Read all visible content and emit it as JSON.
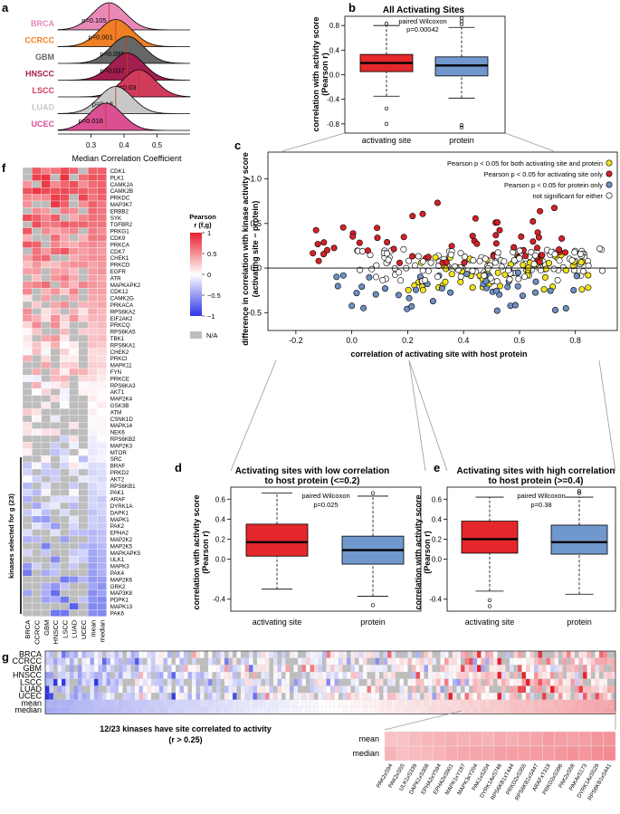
{
  "colors": {
    "activating": "#e4272b",
    "protein": "#7098cc",
    "both": "#f1e31e",
    "act_only": "#d42127",
    "prot_only": "#6d8fc4",
    "neither": "#ffffff",
    "na": "#bdbdbd",
    "pos": "#e8202d",
    "neg": "#2f37e6"
  },
  "panel_a": {
    "label": "a",
    "xlabel": "Median Correlation Coefficient",
    "ticks": [
      "0.3",
      "0.4",
      "0.5"
    ],
    "rows": [
      {
        "cohort": "BRCA",
        "color": "#e889b8",
        "pvalue": "p=0.105",
        "median": 0.355
      },
      {
        "cohort": "CCRCC",
        "color": "#ef7f25",
        "pvalue": "p=0.001",
        "median": 0.375
      },
      {
        "cohort": "GBM",
        "color": "#666666",
        "pvalue": "p=0.095",
        "median": 0.41
      },
      {
        "cohort": "HNSCC",
        "color": "#a31e4e",
        "pvalue": "p=0.037",
        "median": 0.41
      },
      {
        "cohort": "LSCC",
        "color": "#d13b5b",
        "pvalue": "p=0.03",
        "median": 0.445
      },
      {
        "cohort": "LUAD",
        "color": "#c8c8c8",
        "pvalue": "p=0.18",
        "median": 0.375
      },
      {
        "cohort": "UCEC",
        "color": "#db4f93",
        "pvalue": "p=0.016",
        "median": 0.345
      }
    ]
  },
  "panel_b": {
    "label": "b",
    "title": "All Activating Sites",
    "ylabel_1": "correlation with activity score",
    "ylabel_2": "(Pearson r)",
    "test": "paired Wilcoxon",
    "pvalue": "p=0.00042",
    "yticks": [
      "-0.8",
      "-0.4",
      "0.0",
      "0.4",
      "0.8"
    ],
    "groups": [
      "activating site",
      "protein"
    ]
  },
  "panel_c": {
    "label": "c",
    "ylabel_1": "difference in correlation with kinase activity score",
    "ylabel_2": "(activating site − protein)",
    "xlabel": "correlation of activating site with host protein",
    "xticks": [
      "-0.2",
      "0.0",
      "0.2",
      "0.4",
      "0.6",
      "0.8"
    ],
    "yticks": [
      "1.0",
      "0.5",
      "0.0",
      "-0.5"
    ],
    "legend": [
      "Pearson p < 0.05 for both activating site and protein",
      "Pearson p < 0.05 for activating site only",
      "Pearson p < 0.05 for protein only",
      "not significant for either"
    ]
  },
  "panel_d": {
    "label": "d",
    "title_1": "Activating sites with low correlation",
    "title_2": "to host protein (<=0.2)",
    "test": "paired Wilcoxon",
    "pvalue": "p=0.025",
    "ylabel_1": "correlation with activity score",
    "ylabel_2": "(Pearson r)",
    "yticks": [
      "-0.4",
      "0.0",
      "0.2",
      "0.4",
      "0.6"
    ],
    "groups": [
      "activating site",
      "protein"
    ]
  },
  "panel_e": {
    "label": "e",
    "title_1": "Activating sites with high correlation",
    "title_2": "to host protein (>=0.4)",
    "test": "paired Wilcoxon",
    "pvalue": "p=0.38",
    "ylabel_1": "correlation with activity score",
    "ylabel_2": "(Pearson r)",
    "yticks": [
      "-0.4",
      "0.0",
      "0.2",
      "0.4",
      "0.6"
    ],
    "groups": [
      "activating site",
      "protein"
    ]
  },
  "panel_f": {
    "label": "f",
    "kinases": [
      "CDK1",
      "PLK1",
      "CAMK2A",
      "CAMK2B",
      "PRKDC",
      "MAP3K7",
      "ERBB2",
      "SYK",
      "TGFBR2",
      "PRKG1",
      "CDK9",
      "PRKCA",
      "CDK7",
      "CHEK1",
      "PRKCD",
      "EGFR",
      "ATR",
      "MAPKAPK2",
      "CDK12",
      "CAMK2G",
      "PRKACA",
      "RPS6KA2",
      "EIF2AK2",
      "PRKCQ",
      "RPS6KA5",
      "TBK1",
      "RPS6KA1",
      "CHEK2",
      "PRKCI",
      "MAPK11",
      "FYN",
      "PRKCE",
      "RPS6KA3",
      "AKT1",
      "MAP2K4",
      "GSK3B",
      "ATM",
      "CSNK1D",
      "MAPK14",
      "NEK6",
      "RPS6KB2",
      "MAP2K3",
      "MTOR",
      "SRC",
      "BRAF",
      "PRKD2",
      "AKT2",
      "RPS6KB1",
      "PAK1",
      "ARAF",
      "DYRK1A",
      "DAPK1",
      "MAPK1",
      "PAK2",
      "EPHA2",
      "MAP2K2",
      "MAP2K5",
      "MAPKAPK5",
      "ULK1",
      "MAPK3",
      "PAK4",
      "MAP2K6",
      "GRK2",
      "MAP3K8",
      "PDPK1",
      "MAPK13",
      "PAK6"
    ],
    "columns": [
      "BRCA",
      "CCRCC",
      "GBM",
      "HNSCC",
      "LSCC",
      "LUAD",
      "UCEC",
      "mean",
      "median"
    ],
    "selected_label": "kinases selected for g (23)",
    "legend_title_1": "Pearson",
    "legend_title_2": "r (f,g)",
    "legend_ticks": [
      "1",
      "0.5",
      "0",
      "−0.5",
      "−1"
    ],
    "na_label": "N/A"
  },
  "panel_g": {
    "label": "g",
    "rows": [
      "BRCA",
      "CCRCC",
      "GBM",
      "HNSCC",
      "LSCC",
      "LUAD",
      "UCEC",
      "mean",
      "median"
    ],
    "summary": "12/23 kinases have site correlated to activity",
    "summary_2": "(r > 0.25)",
    "zoom_rows": [
      "mean",
      "median"
    ],
    "sites": [
      "PAK2xS94",
      "PAK2xS55",
      "ULK1xS339",
      "DAPK1xS308",
      "EPHA2xY594",
      "EPHA2xS901",
      "MAPK1xY187",
      "MAPK3xY204",
      "PAK1xS204",
      "DYRK1AxS748",
      "RPS6KB1xT444",
      "PRKD2xS355",
      "RPS6KB1xS447",
      "ARAFxT318",
      "PRKD2xS396",
      "PAK2xS58",
      "PAK4xS173",
      "DYRK1AxS529",
      "RPS6KB1xS441"
    ]
  }
}
